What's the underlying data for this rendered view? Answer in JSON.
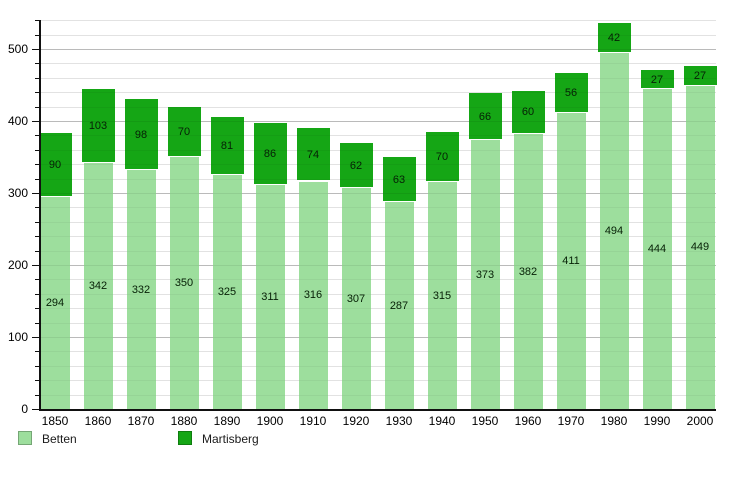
{
  "chart_data": {
    "type": "bar",
    "stacked": true,
    "title": "",
    "xlabel": "",
    "ylabel": "",
    "categories": [
      "1850",
      "1860",
      "1870",
      "1880",
      "1890",
      "1900",
      "1910",
      "1920",
      "1930",
      "1940",
      "1950",
      "1960",
      "1970",
      "1980",
      "1990",
      "2000"
    ],
    "series": [
      {
        "name": "Betten",
        "color": "#9dde9d",
        "values": [
          294,
          342,
          332,
          350,
          325,
          311,
          316,
          307,
          287,
          315,
          373,
          382,
          411,
          494,
          444,
          449
        ]
      },
      {
        "name": "Martisberg",
        "color": "#15a615",
        "values": [
          90,
          103,
          98,
          70,
          81,
          86,
          74,
          62,
          63,
          70,
          66,
          60,
          56,
          42,
          27,
          27
        ]
      }
    ],
    "ylim": [
      0,
      540
    ],
    "yticks": [
      0,
      100,
      200,
      300,
      400,
      500
    ],
    "grid": "horizontal; major every 100, minor every 20",
    "data_labels": "inside segments, centered",
    "legend_position": "bottom-left"
  },
  "legend": {
    "items": [
      {
        "label": "Betten",
        "color": "#9dde9d"
      },
      {
        "label": "Martisberg",
        "color": "#15a615"
      }
    ]
  }
}
